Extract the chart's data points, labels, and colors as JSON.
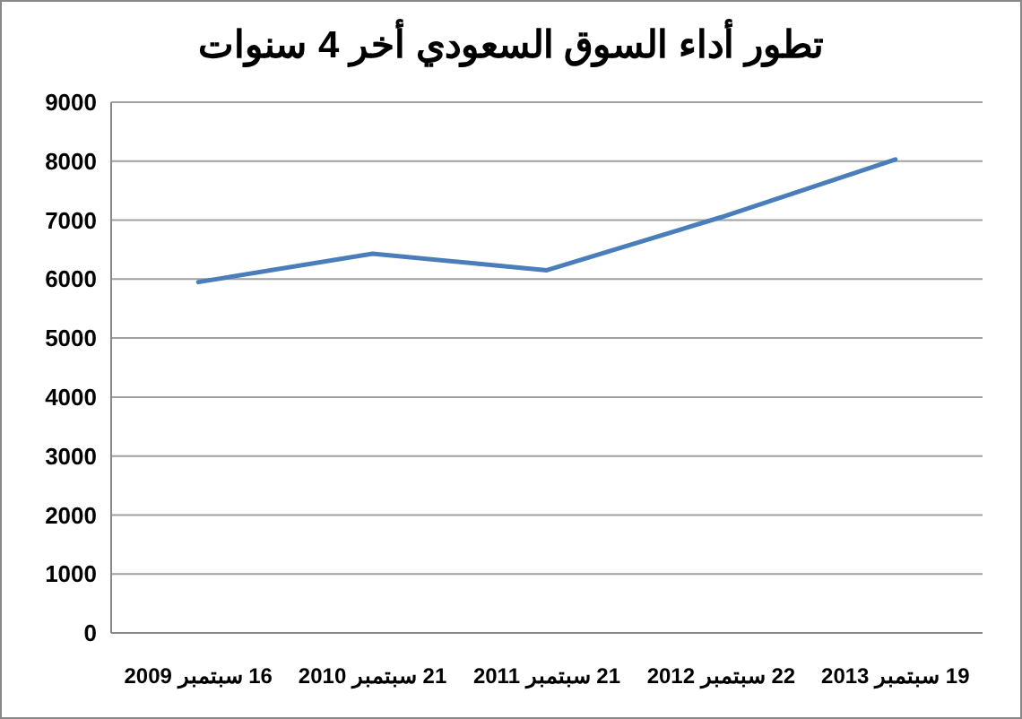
{
  "chart_data": {
    "type": "line",
    "title": "تطور أداء السوق السعودي أخر 4 سنوات",
    "categories": [
      "16 سبتمبر 2009",
      "21 سبتمبر 2010",
      "21 سبتمبر 2011",
      "22 سبتمبر 2012",
      "19 سبتمبر 2013"
    ],
    "series": [
      {
        "color": "#4a7ebb",
        "values": [
          5950,
          6430,
          6150,
          7050,
          8030
        ]
      }
    ],
    "ylim": [
      0,
      9000
    ],
    "yticks": [
      0,
      1000,
      2000,
      3000,
      4000,
      5000,
      6000,
      7000,
      8000,
      9000
    ],
    "grid": "y",
    "marker": "none",
    "line_style": "solid"
  }
}
